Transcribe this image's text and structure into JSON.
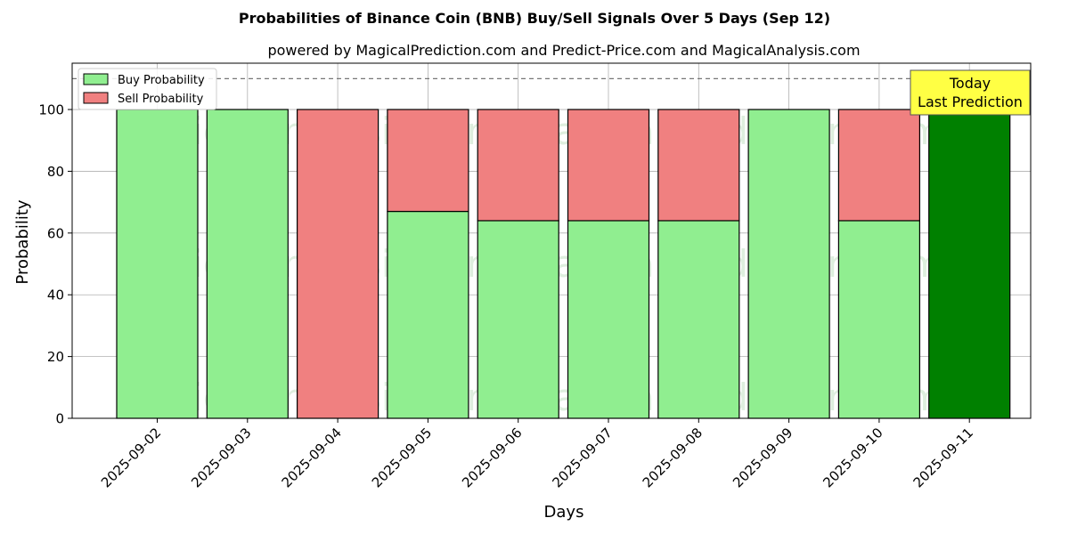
{
  "chart_data": {
    "type": "bar",
    "stacked": true,
    "title": "Probabilities of Binance Coin (BNB) Buy/Sell Signals Over 5 Days (Sep 12)",
    "subtitle": "powered by MagicalPrediction.com and Predict-Price.com and MagicalAnalysis.com",
    "xlabel": "Days",
    "ylabel": "Probability",
    "ylim": [
      0,
      115
    ],
    "yticks": [
      0,
      20,
      40,
      60,
      80,
      100
    ],
    "reference_line": 110,
    "grid": true,
    "legend_position": "top-left",
    "categories": [
      "2025-09-02",
      "2025-09-03",
      "2025-09-04",
      "2025-09-05",
      "2025-09-06",
      "2025-09-07",
      "2025-09-08",
      "2025-09-09",
      "2025-09-10",
      "2025-09-11"
    ],
    "series": [
      {
        "name": "Buy Probability",
        "color": "#90ee90",
        "values": [
          100,
          100,
          0,
          67,
          64,
          64,
          64,
          100,
          64,
          100
        ]
      },
      {
        "name": "Sell Probability",
        "color": "#f08080",
        "values": [
          0,
          0,
          100,
          33,
          36,
          36,
          36,
          0,
          36,
          0
        ]
      }
    ],
    "highlight": {
      "index": 9,
      "color": "#008000",
      "label_line1": "Today",
      "label_line2": "Last Prediction",
      "box_color": "#ffff44"
    },
    "watermarks": [
      "MagicalAnalysis.com",
      "MagicalPrediction.com"
    ]
  }
}
